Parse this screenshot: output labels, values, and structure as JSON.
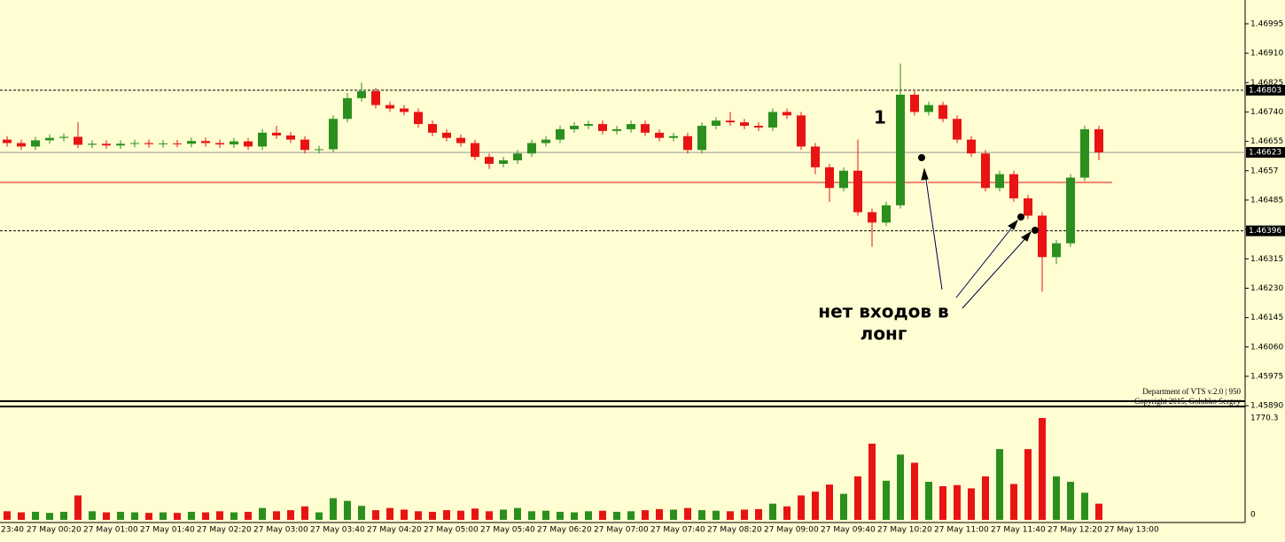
{
  "chart_data": [
    {
      "type": "candlestick",
      "up_color": "#2b8f1e",
      "down_color": "#e81414",
      "open": [
        1.4666,
        1.4665,
        1.4664,
        1.46658,
        1.46665,
        1.46668,
        1.46645,
        1.46648,
        1.46643,
        1.46648,
        1.4665,
        1.46647,
        1.46649,
        1.46648,
        1.46656,
        1.4665,
        1.46646,
        1.46655,
        1.4664,
        1.4668,
        1.46672,
        1.4666,
        1.4663,
        1.46632,
        1.4672,
        1.4678,
        1.468,
        1.4676,
        1.4675,
        1.4674,
        1.46705,
        1.4668,
        1.46665,
        1.4665,
        1.4661,
        1.4659,
        1.466,
        1.4662,
        1.4665,
        1.4666,
        1.4669,
        1.467,
        1.46705,
        1.46685,
        1.4669,
        1.46705,
        1.4668,
        1.46665,
        1.4667,
        1.4663,
        1.467,
        1.46715,
        1.4671,
        1.467,
        1.46695,
        1.4674,
        1.4673,
        1.4664,
        1.4658,
        1.4652,
        1.4657,
        1.4645,
        1.4642,
        1.4647,
        1.4679,
        1.4674,
        1.4676,
        1.4672,
        1.4666,
        1.4662,
        1.4652,
        1.4656,
        1.4649,
        1.4644,
        1.4632,
        1.4636,
        1.4655,
        1.4669
      ],
      "high": [
        1.4667,
        1.4666,
        1.46668,
        1.46675,
        1.46678,
        1.4671,
        1.46658,
        1.46658,
        1.46658,
        1.4666,
        1.4666,
        1.46659,
        1.46659,
        1.46666,
        1.46666,
        1.4666,
        1.46665,
        1.46665,
        1.4669,
        1.467,
        1.46682,
        1.4667,
        1.46642,
        1.4673,
        1.46795,
        1.46825,
        1.4681,
        1.4677,
        1.4676,
        1.4675,
        1.46715,
        1.4669,
        1.46675,
        1.4666,
        1.4662,
        1.4661,
        1.4663,
        1.4666,
        1.4667,
        1.467,
        1.4671,
        1.46715,
        1.46715,
        1.467,
        1.46715,
        1.46715,
        1.4669,
        1.4668,
        1.4668,
        1.4671,
        1.46725,
        1.4674,
        1.4672,
        1.4671,
        1.4675,
        1.4675,
        1.4674,
        1.4665,
        1.4659,
        1.4658,
        1.4666,
        1.4646,
        1.4648,
        1.4688,
        1.468,
        1.4677,
        1.4677,
        1.4673,
        1.4667,
        1.4663,
        1.4657,
        1.4657,
        1.465,
        1.4645,
        1.4637,
        1.4656,
        1.467,
        1.467
      ],
      "low": [
        1.4664,
        1.4663,
        1.4663,
        1.46648,
        1.46655,
        1.46635,
        1.46635,
        1.46633,
        1.46633,
        1.46638,
        1.46637,
        1.46637,
        1.46638,
        1.46638,
        1.4664,
        1.46636,
        1.46636,
        1.4663,
        1.4663,
        1.46662,
        1.4665,
        1.4662,
        1.4662,
        1.46622,
        1.4671,
        1.4677,
        1.4675,
        1.4674,
        1.4673,
        1.46695,
        1.4667,
        1.46655,
        1.4664,
        1.466,
        1.46575,
        1.4658,
        1.4659,
        1.4661,
        1.4664,
        1.4665,
        1.4668,
        1.4669,
        1.46675,
        1.46675,
        1.4668,
        1.4667,
        1.46655,
        1.46655,
        1.4662,
        1.4662,
        1.4669,
        1.467,
        1.4669,
        1.46685,
        1.46685,
        1.4672,
        1.4663,
        1.4656,
        1.4648,
        1.4651,
        1.4644,
        1.4635,
        1.4641,
        1.4646,
        1.4673,
        1.4673,
        1.4671,
        1.4665,
        1.4661,
        1.4651,
        1.4651,
        1.4648,
        1.4643,
        1.4622,
        1.463,
        1.4635,
        1.4654,
        1.466
      ],
      "close": [
        1.4665,
        1.4664,
        1.46658,
        1.46665,
        1.46668,
        1.46645,
        1.46648,
        1.46643,
        1.46648,
        1.4665,
        1.46647,
        1.46649,
        1.46648,
        1.46656,
        1.4665,
        1.46646,
        1.46655,
        1.4664,
        1.4668,
        1.46672,
        1.4666,
        1.4663,
        1.46632,
        1.4672,
        1.4678,
        1.468,
        1.4676,
        1.4675,
        1.4674,
        1.46705,
        1.4668,
        1.46665,
        1.4665,
        1.4661,
        1.4659,
        1.466,
        1.4662,
        1.4665,
        1.4666,
        1.4669,
        1.467,
        1.46705,
        1.46685,
        1.4669,
        1.46705,
        1.4668,
        1.46665,
        1.4667,
        1.4663,
        1.467,
        1.46715,
        1.4671,
        1.467,
        1.46695,
        1.4674,
        1.4673,
        1.4664,
        1.4658,
        1.4652,
        1.4657,
        1.4645,
        1.4642,
        1.4647,
        1.4679,
        1.4674,
        1.4676,
        1.4672,
        1.4666,
        1.4662,
        1.4652,
        1.4656,
        1.4649,
        1.4644,
        1.4632,
        1.4636,
        1.4655,
        1.4669,
        1.46623
      ],
      "time_labels": [
        "23:40",
        "27 May 00:20",
        "27 May 01:00",
        "27 May 01:40",
        "27 May 02:20",
        "27 May 03:00",
        "27 May 03:40",
        "27 May 04:20",
        "27 May 05:00",
        "27 May 05:40",
        "27 May 06:20",
        "27 May 07:00",
        "27 May 07:40",
        "27 May 08:20",
        "27 May 09:00",
        "27 May 09:40",
        "27 May 10:20",
        "27 May 11:00",
        "27 May 11:40",
        "27 May 12:20",
        "27 May 13:00"
      ],
      "ylim": [
        1.4588,
        1.47064
      ],
      "yticks": [
        1.46995,
        {
          "value": 1.4691,
          "label": "1.46910"
        },
        1.46825,
        {
          "value": 1.4674,
          "label": "1.46740"
        },
        1.46655,
        1.4657,
        1.46485,
        1.464,
        1.46315,
        {
          "value": 1.4623,
          "label": "1.46230"
        },
        1.46145,
        {
          "value": 1.4606,
          "label": "1.46060"
        },
        1.45975,
        {
          "value": 1.4589,
          "label": "1.45890"
        }
      ],
      "levels": [
        {
          "value": 1.46803,
          "style": "dashed",
          "color": "#000000"
        },
        {
          "value": 1.46623,
          "style": "solid",
          "color": "#9a9a9a"
        },
        {
          "value": 1.46396,
          "style": "dashed",
          "color": "#000000"
        }
      ],
      "red_level": 1.46536,
      "annotations": [
        "1",
        "нет входов в",
        "лонг"
      ],
      "footer": [
        "Department of VTS  v.2.0 | 950",
        "Copyright 2015, Golubko Sergey"
      ]
    },
    {
      "type": "bar",
      "values": [
        60,
        40,
        50,
        30,
        50,
        350,
        60,
        40,
        50,
        40,
        30,
        40,
        30,
        50,
        40,
        60,
        40,
        50,
        120,
        60,
        80,
        150,
        40,
        300,
        250,
        160,
        80,
        120,
        90,
        60,
        50,
        80,
        70,
        110,
        60,
        90,
        120,
        60,
        70,
        50,
        40,
        60,
        70,
        50,
        60,
        80,
        100,
        90,
        120,
        80,
        70,
        60,
        90,
        100,
        200,
        150,
        350,
        420,
        550,
        380,
        700,
        1300,
        620,
        1100,
        950,
        600,
        520,
        540,
        480,
        700,
        1200,
        560,
        1200,
        1770.3,
        700,
        600,
        400,
        200
      ],
      "ylim": [
        0,
        1770.3
      ],
      "yticks": [
        0,
        1770.3
      ]
    }
  ]
}
